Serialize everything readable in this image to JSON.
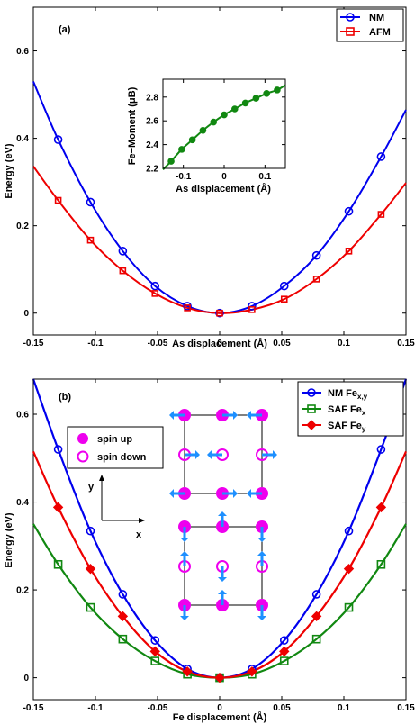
{
  "chart_data": [
    {
      "type": "line",
      "panel_label": "(a)",
      "xlabel": "As displacement (Å)",
      "ylabel": "Energy (eV)",
      "xlim": [
        -0.15,
        0.15
      ],
      "ylim": [
        -0.05,
        0.7
      ],
      "xticks": [
        "-0.15",
        "-0.1",
        "-0.05",
        "0",
        "0.05",
        "0.1",
        "0.15"
      ],
      "yticks": [
        "0",
        "0.2",
        "0.4",
        "0.6"
      ],
      "legend": "top-right",
      "series": [
        {
          "name": "NM",
          "color": "#0000ee",
          "marker": "circle",
          "x": [
            -0.13,
            -0.104,
            -0.078,
            -0.052,
            -0.026,
            0.0,
            0.026,
            0.052,
            0.078,
            0.104,
            0.13
          ],
          "y": [
            0.397,
            0.254,
            0.142,
            0.062,
            0.016,
            0.0,
            0.016,
            0.062,
            0.132,
            0.233,
            0.358
          ],
          "curve_x": [
            -0.15,
            -0.13,
            -0.104,
            -0.078,
            -0.052,
            -0.026,
            0.0,
            0.026,
            0.052,
            0.078,
            0.104,
            0.13,
            0.15
          ],
          "curve_y": [
            0.53,
            0.397,
            0.254,
            0.142,
            0.062,
            0.016,
            0.0,
            0.016,
            0.062,
            0.132,
            0.233,
            0.358,
            0.465
          ]
        },
        {
          "name": "AFM",
          "color": "#ee0000",
          "marker": "square",
          "x": [
            -0.13,
            -0.104,
            -0.078,
            -0.052,
            -0.026,
            0.0,
            0.026,
            0.052,
            0.078,
            0.104,
            0.13
          ],
          "y": [
            0.258,
            0.167,
            0.097,
            0.045,
            0.012,
            0.0,
            0.008,
            0.032,
            0.078,
            0.142,
            0.226
          ],
          "curve_x": [
            -0.15,
            -0.13,
            -0.104,
            -0.078,
            -0.052,
            -0.026,
            0.0,
            0.026,
            0.052,
            0.078,
            0.104,
            0.13,
            0.15
          ],
          "curve_y": [
            0.336,
            0.258,
            0.167,
            0.097,
            0.045,
            0.012,
            0.0,
            0.008,
            0.032,
            0.078,
            0.142,
            0.226,
            0.298
          ]
        }
      ],
      "inset": {
        "type": "line",
        "xlabel": "As displacement (Å)",
        "ylabel": "Fe−Moment (μB)",
        "xlim": [
          -0.15,
          0.15
        ],
        "ylim": [
          2.2,
          2.95
        ],
        "xticks": [
          "-0.1",
          "0",
          "0.1"
        ],
        "yticks": [
          "2.2",
          "2.4",
          "2.6",
          "2.8"
        ],
        "series": [
          {
            "color": "#118811",
            "marker": "circle",
            "x": [
              -0.13,
              -0.104,
              -0.078,
              -0.052,
              -0.026,
              0.0,
              0.026,
              0.052,
              0.078,
              0.104,
              0.13
            ],
            "y": [
              2.26,
              2.36,
              2.44,
              2.52,
              2.59,
              2.65,
              2.7,
              2.75,
              2.79,
              2.83,
              2.86
            ],
            "curve_x": [
              -0.15,
              -0.13,
              -0.104,
              -0.078,
              -0.052,
              -0.026,
              0.0,
              0.026,
              0.052,
              0.078,
              0.104,
              0.13,
              0.15
            ],
            "curve_y": [
              2.19,
              2.26,
              2.36,
              2.44,
              2.52,
              2.59,
              2.65,
              2.7,
              2.75,
              2.79,
              2.83,
              2.86,
              2.9
            ]
          }
        ]
      }
    },
    {
      "type": "line",
      "panel_label": "(b)",
      "xlabel": "Fe displacement (Å)",
      "ylabel": "Energy (eV)",
      "xlim": [
        -0.15,
        0.15
      ],
      "ylim": [
        -0.05,
        0.68
      ],
      "xticks": [
        "-0.15",
        "-0.1",
        "-0.05",
        "0",
        "0.05",
        "0.1",
        "0.15"
      ],
      "yticks": [
        "0",
        "0.2",
        "0.4",
        "0.6"
      ],
      "legend": "top-right",
      "series": [
        {
          "name": "NM Fe",
          "sub": "x,y",
          "color": "#0000ee",
          "marker": "circle",
          "x": [
            -0.13,
            -0.104,
            -0.078,
            -0.052,
            -0.026,
            0.0,
            0.026,
            0.052,
            0.078,
            0.104,
            0.13
          ],
          "y": [
            0.52,
            0.334,
            0.19,
            0.085,
            0.02,
            0.0,
            0.02,
            0.085,
            0.19,
            0.334,
            0.52
          ],
          "curve_x": [
            -0.15,
            -0.13,
            -0.104,
            -0.078,
            -0.052,
            -0.026,
            0.0,
            0.026,
            0.052,
            0.078,
            0.104,
            0.13,
            0.15
          ],
          "curve_y": [
            0.68,
            0.52,
            0.334,
            0.19,
            0.085,
            0.02,
            0.0,
            0.02,
            0.085,
            0.19,
            0.334,
            0.52,
            0.68
          ]
        },
        {
          "name": "SAF Fe",
          "sub": "x",
          "color": "#118811",
          "marker": "square",
          "x": [
            -0.13,
            -0.104,
            -0.078,
            -0.052,
            -0.026,
            0.0,
            0.026,
            0.052,
            0.078,
            0.104,
            0.13
          ],
          "y": [
            0.258,
            0.16,
            0.088,
            0.038,
            0.008,
            0.0,
            0.008,
            0.038,
            0.088,
            0.16,
            0.258
          ],
          "curve_x": [
            -0.15,
            -0.13,
            -0.104,
            -0.078,
            -0.052,
            -0.026,
            0.0,
            0.026,
            0.052,
            0.078,
            0.104,
            0.13,
            0.15
          ],
          "curve_y": [
            0.35,
            0.258,
            0.16,
            0.088,
            0.038,
            0.008,
            0.0,
            0.008,
            0.038,
            0.088,
            0.16,
            0.258,
            0.35
          ]
        },
        {
          "name": "SAF Fe",
          "sub": "y",
          "color": "#ee0000",
          "marker": "diamond",
          "x": [
            -0.13,
            -0.104,
            -0.078,
            -0.052,
            -0.026,
            0.0,
            0.026,
            0.052,
            0.078,
            0.104,
            0.13
          ],
          "y": [
            0.388,
            0.248,
            0.14,
            0.06,
            0.014,
            0.0,
            0.014,
            0.06,
            0.14,
            0.248,
            0.388
          ],
          "curve_x": [
            -0.15,
            -0.13,
            -0.104,
            -0.078,
            -0.052,
            -0.026,
            0.0,
            0.026,
            0.052,
            0.078,
            0.104,
            0.13,
            0.15
          ],
          "curve_y": [
            0.515,
            0.388,
            0.248,
            0.14,
            0.06,
            0.014,
            0.0,
            0.014,
            0.06,
            0.14,
            0.248,
            0.388,
            0.515
          ]
        }
      ],
      "diagram": {
        "legend": [
          {
            "label": "spin up",
            "symbol": "filled-circle",
            "color": "#ee00ee"
          },
          {
            "label": "spin down",
            "symbol": "open-circle",
            "color": "#ee00ee"
          }
        ],
        "axis_labels": {
          "x": "x",
          "y": "y"
        },
        "arrow_color": "#1e90ff",
        "atom_color": "#ee00ee"
      }
    }
  ]
}
